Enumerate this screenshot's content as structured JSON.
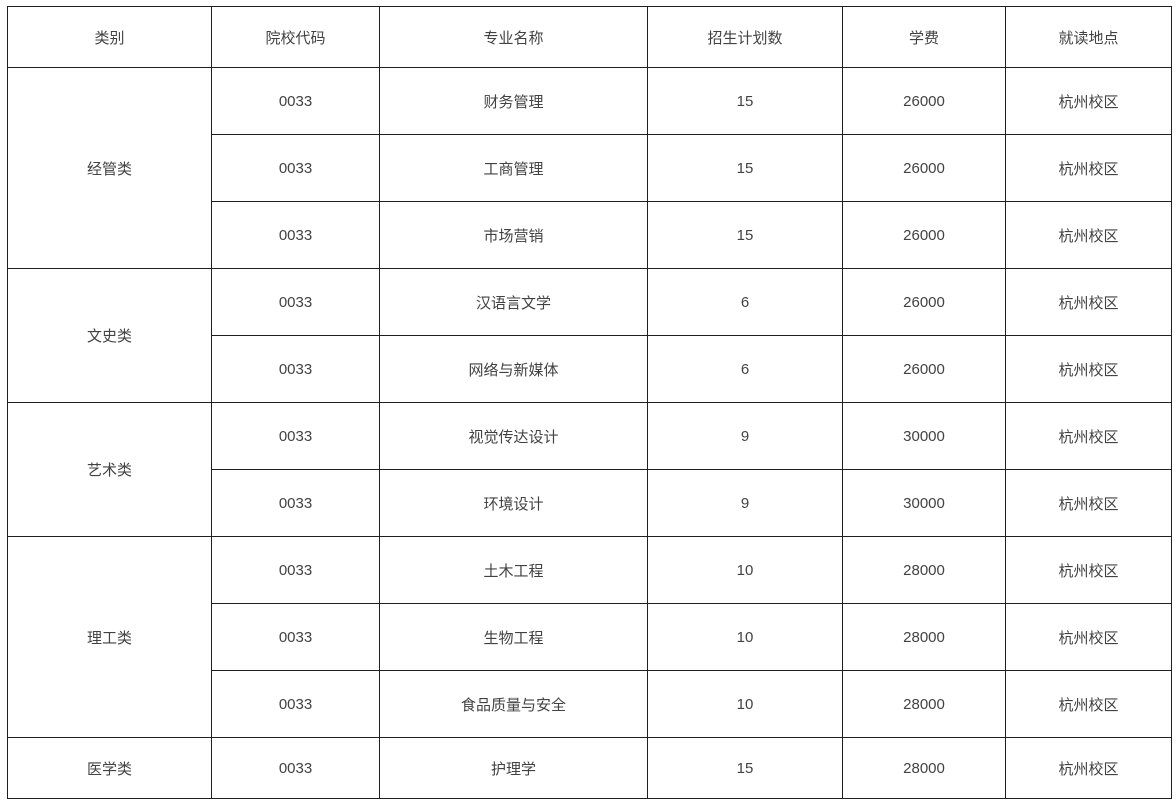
{
  "colors": {
    "border": "#1f1f1f",
    "text": "#424242",
    "background": "#ffffff"
  },
  "table": {
    "headers": [
      "类别",
      "院校代码",
      "专业名称",
      "招生计划数",
      "学费",
      "就读地点"
    ],
    "groups": [
      {
        "category": "经管类",
        "rows": [
          {
            "code": "0033",
            "major": "财务管理",
            "plan": "15",
            "tuition": "26000",
            "location": "杭州校区"
          },
          {
            "code": "0033",
            "major": "工商管理",
            "plan": "15",
            "tuition": "26000",
            "location": "杭州校区"
          },
          {
            "code": "0033",
            "major": "市场营销",
            "plan": "15",
            "tuition": "26000",
            "location": "杭州校区"
          }
        ]
      },
      {
        "category": "文史类",
        "rows": [
          {
            "code": "0033",
            "major": "汉语言文学",
            "plan": "6",
            "tuition": "26000",
            "location": "杭州校区"
          },
          {
            "code": "0033",
            "major": "网络与新媒体",
            "plan": "6",
            "tuition": "26000",
            "location": "杭州校区"
          }
        ]
      },
      {
        "category": "艺术类",
        "rows": [
          {
            "code": "0033",
            "major": "视觉传达设计",
            "plan": "9",
            "tuition": "30000",
            "location": "杭州校区"
          },
          {
            "code": "0033",
            "major": "环境设计",
            "plan": "9",
            "tuition": "30000",
            "location": "杭州校区"
          }
        ]
      },
      {
        "category": "理工类",
        "rows": [
          {
            "code": "0033",
            "major": "土木工程",
            "plan": "10",
            "tuition": "28000",
            "location": "杭州校区"
          },
          {
            "code": "0033",
            "major": "生物工程",
            "plan": "10",
            "tuition": "28000",
            "location": "杭州校区"
          },
          {
            "code": "0033",
            "major": "食品质量与安全",
            "plan": "10",
            "tuition": "28000",
            "location": "杭州校区"
          }
        ]
      },
      {
        "category": "医学类",
        "rows": [
          {
            "code": "0033",
            "major": "护理学",
            "plan": "15",
            "tuition": "28000",
            "location": "杭州校区"
          }
        ]
      }
    ]
  }
}
